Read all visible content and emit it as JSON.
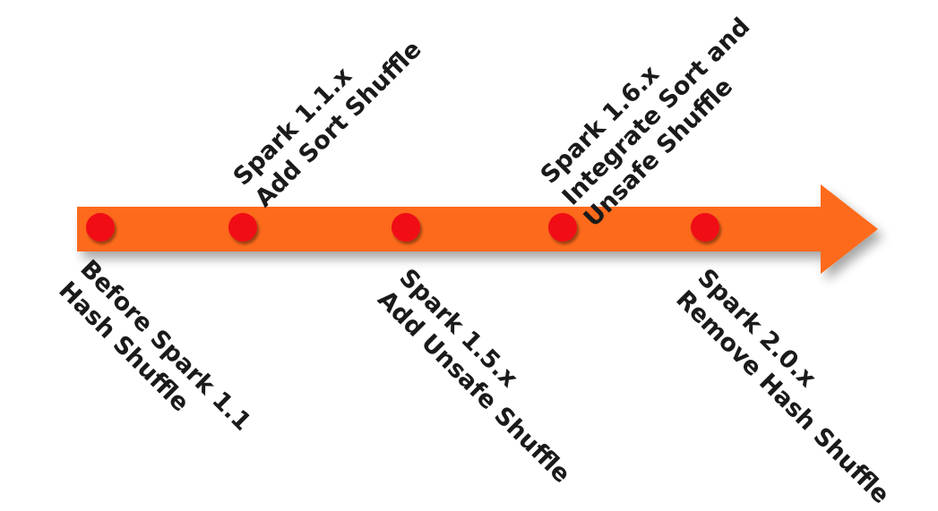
{
  "colors": {
    "arrow": "#fd6a1a",
    "marker": "#f01018",
    "text": "#1a1a1a"
  },
  "milestones": [
    {
      "lines": [
        "Before Spark 1.1",
        "Hash Shuffle"
      ]
    },
    {
      "lines": [
        "Spark 1.1.x",
        "Add Sort Shuffle"
      ]
    },
    {
      "lines": [
        "Spark 1.5.x",
        "Add Unsafe Shuffle"
      ]
    },
    {
      "lines": [
        "Spark 1.6.x",
        "Integrate Sort and",
        "Unsafe Shuffle"
      ]
    },
    {
      "lines": [
        "Spark 2.0.x",
        "Remove Hash Shuffle"
      ]
    }
  ]
}
